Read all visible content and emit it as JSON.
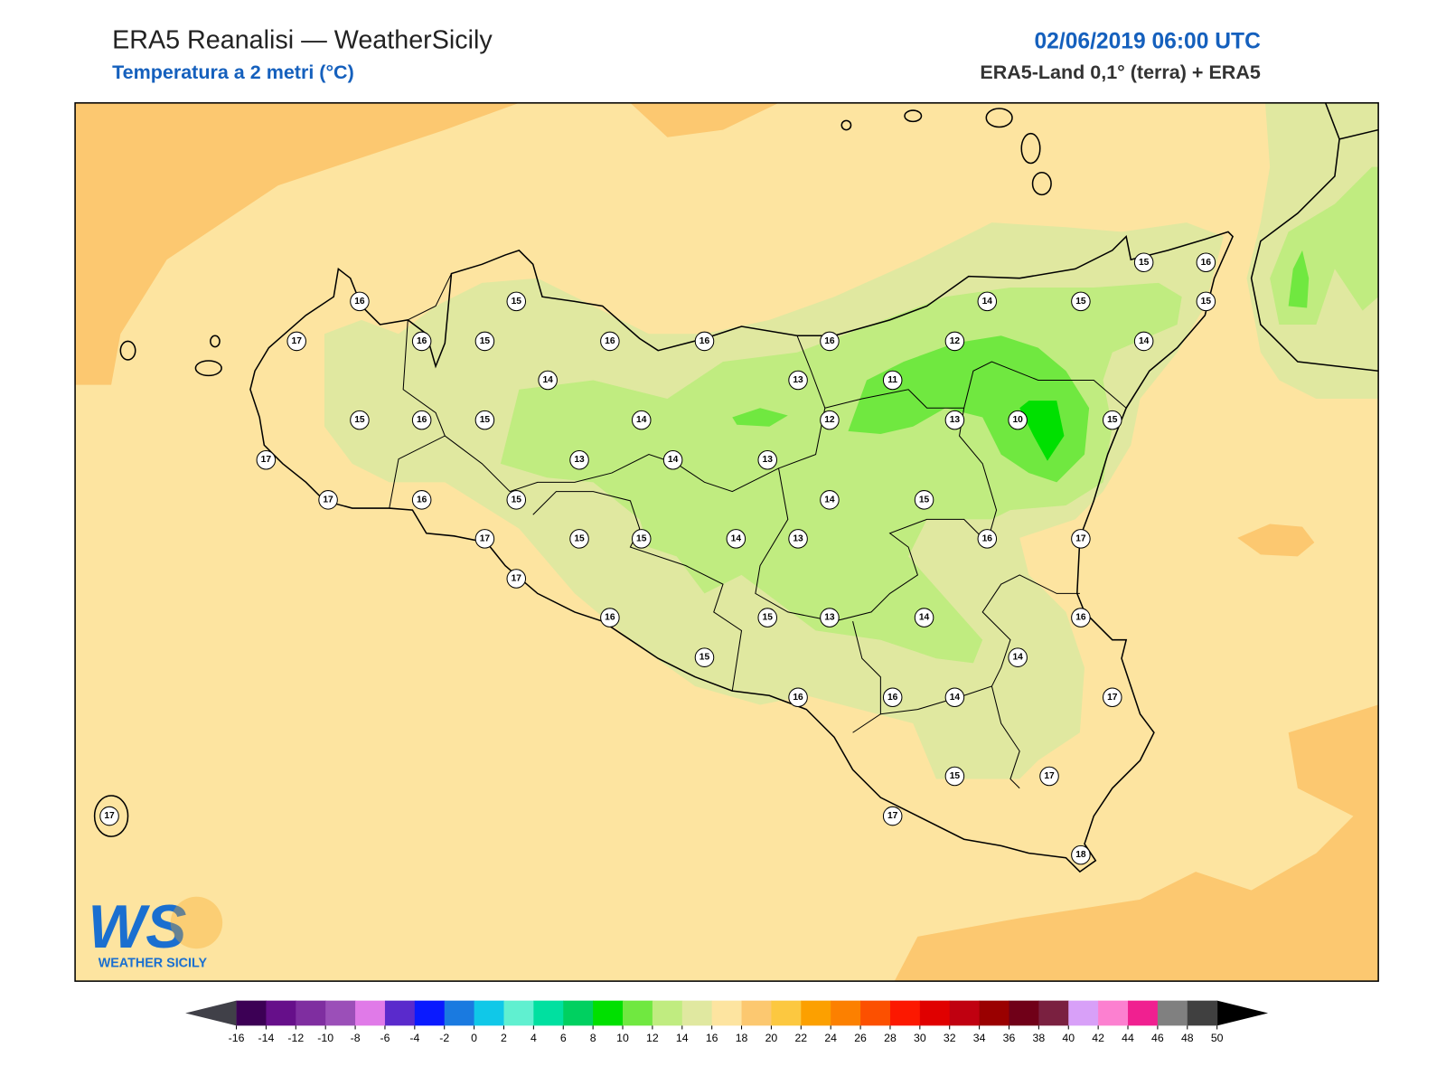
{
  "header": {
    "title": "ERA5 Reanalisi — WeatherSicily",
    "subtitle": "Temperatura a 2 metri (°C)",
    "date": "02/06/2019 06:00 UTC",
    "source": "ERA5-Land 0,1° (terra) + ERA5"
  },
  "stations": [
    16,
    15,
    17,
    16,
    15,
    16,
    16,
    16,
    12,
    14,
    15,
    15,
    16,
    15,
    14,
    14,
    13,
    11,
    15,
    16,
    15,
    14,
    12,
    13,
    10,
    15,
    17,
    13,
    14,
    13,
    17,
    16,
    15,
    14,
    15,
    17,
    15,
    15,
    14,
    13,
    16,
    17,
    17,
    16,
    15,
    13,
    14,
    16,
    15,
    14,
    16,
    16,
    14,
    17,
    15,
    17,
    17,
    17,
    18
  ],
  "colorbar": {
    "levels": [
      -16,
      -14,
      -12,
      -10,
      -8,
      -6,
      -4,
      -2,
      0,
      2,
      4,
      6,
      8,
      10,
      12,
      14,
      16,
      18,
      20,
      22,
      24,
      26,
      28,
      30,
      32,
      34,
      36,
      38,
      40,
      42,
      44,
      46,
      48,
      50
    ],
    "colors": [
      "#3c0055",
      "#660f8a",
      "#7f2ea0",
      "#9b4fb8",
      "#e07ae8",
      "#5a2acc",
      "#0a1aff",
      "#1a7ae0",
      "#10c8e8",
      "#60f0d0",
      "#00e0a0",
      "#00d060",
      "#00e000",
      "#70e840",
      "#c0ec80",
      "#e0e8a0",
      "#fde4a0",
      "#fcc870",
      "#fcc840",
      "#fca000",
      "#fc8000",
      "#fc5000",
      "#fc1800",
      "#e00000",
      "#c00010",
      "#9a0000",
      "#700018",
      "#7a2040",
      "#d8a0f8",
      "#fc80d0",
      "#f02090",
      "#808080",
      "#404040"
    ],
    "under_color": "#404048",
    "over_color": "#000000"
  },
  "logo": {
    "mark": "WS",
    "text": "WEATHER SICILY"
  }
}
